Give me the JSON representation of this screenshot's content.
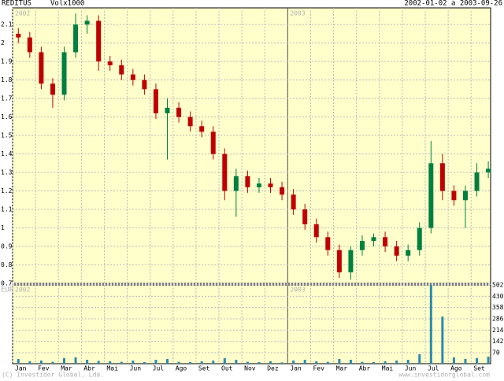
{
  "chart_data": [
    {
      "type": "candlestick",
      "title": "REDITUS",
      "volume_label": "Volx1000",
      "date_range": "2002-01-02 a 2003-09-26",
      "unit": "EUR",
      "year_labels": [
        {
          "value": 0,
          "label": "2002"
        },
        {
          "value": 12,
          "label": "2003"
        }
      ],
      "months": [
        "Jan",
        "Fev",
        "Mar",
        "Abr",
        "Mai",
        "Jun",
        "Jul",
        "Ago",
        "Set",
        "Out",
        "Nov",
        "Dez",
        "Jan",
        "Fev",
        "Mar",
        "Abr",
        "Mai",
        "Jun",
        "Jul",
        "Ago",
        "Set"
      ],
      "x": [
        0.25,
        0.75,
        1.25,
        1.75,
        2.25,
        2.75,
        3.25,
        3.75,
        4.25,
        4.75,
        5.25,
        5.75,
        6.25,
        6.75,
        7.25,
        7.75,
        8.25,
        8.75,
        9.25,
        9.75,
        10.25,
        10.75,
        11.25,
        11.75,
        12.25,
        12.75,
        13.25,
        13.75,
        14.25,
        14.75,
        15.25,
        15.75,
        16.25,
        16.75,
        17.25,
        17.75,
        18.25,
        18.75,
        19.25,
        19.75,
        20.25,
        20.75
      ],
      "open": [
        2.05,
        2.03,
        1.95,
        1.78,
        1.72,
        1.95,
        2.1,
        2.12,
        1.9,
        1.88,
        1.83,
        1.8,
        1.75,
        1.62,
        1.65,
        1.6,
        1.55,
        1.52,
        1.4,
        1.2,
        1.28,
        1.22,
        1.24,
        1.22,
        1.18,
        1.1,
        1.02,
        0.95,
        0.88,
        0.76,
        0.88,
        0.93,
        0.95,
        0.9,
        0.85,
        0.88,
        1.0,
        1.35,
        1.2,
        1.15,
        1.2,
        1.3
      ],
      "high": [
        2.08,
        2.06,
        1.98,
        1.81,
        1.98,
        2.16,
        2.15,
        2.15,
        1.93,
        1.91,
        1.86,
        1.83,
        1.78,
        1.7,
        1.68,
        1.63,
        1.58,
        1.55,
        1.43,
        1.32,
        1.31,
        1.27,
        1.27,
        1.25,
        1.21,
        1.13,
        1.05,
        0.98,
        0.91,
        0.9,
        0.96,
        0.97,
        0.98,
        0.93,
        0.91,
        1.03,
        1.47,
        1.4,
        1.23,
        1.23,
        1.35,
        1.36
      ],
      "low": [
        2.0,
        1.92,
        1.75,
        1.65,
        1.69,
        1.92,
        2.05,
        1.85,
        1.85,
        1.8,
        1.77,
        1.72,
        1.59,
        1.37,
        1.57,
        1.52,
        1.49,
        1.37,
        1.15,
        1.06,
        1.19,
        1.19,
        1.19,
        1.15,
        1.07,
        0.99,
        0.92,
        0.85,
        0.73,
        0.72,
        0.85,
        0.9,
        0.87,
        0.82,
        0.82,
        0.85,
        0.97,
        1.15,
        1.12,
        1.0,
        1.17,
        1.27
      ],
      "close": [
        2.03,
        1.95,
        1.78,
        1.72,
        1.95,
        2.1,
        2.12,
        1.9,
        1.88,
        1.83,
        1.8,
        1.75,
        1.62,
        1.65,
        1.6,
        1.55,
        1.52,
        1.4,
        1.2,
        1.28,
        1.22,
        1.24,
        1.22,
        1.18,
        1.1,
        1.02,
        0.95,
        0.88,
        0.76,
        0.88,
        0.93,
        0.95,
        0.9,
        0.85,
        0.88,
        1.0,
        1.35,
        1.2,
        1.15,
        1.2,
        1.3,
        1.32
      ],
      "up_color": "#008040",
      "down_color": "#c00000",
      "xlim": [
        0,
        20.85
      ],
      "ylim": [
        0.7,
        2.19
      ],
      "yticks": [
        0.7,
        0.8,
        0.9,
        1.0,
        1.1,
        1.2,
        1.3,
        1.4,
        1.5,
        1.6,
        1.7,
        1.8,
        1.9,
        2.0,
        2.1
      ],
      "grid": true
    },
    {
      "type": "volume",
      "x": [
        0.25,
        0.75,
        1.25,
        1.75,
        2.25,
        2.75,
        3.25,
        3.75,
        4.25,
        4.75,
        5.25,
        5.75,
        6.25,
        6.75,
        7.25,
        7.75,
        8.25,
        8.75,
        9.25,
        9.75,
        10.25,
        10.75,
        11.25,
        11.75,
        12.25,
        12.75,
        13.25,
        13.75,
        14.25,
        14.75,
        15.25,
        15.75,
        16.25,
        16.75,
        17.25,
        17.75,
        18.25,
        18.75,
        19.25,
        19.75,
        20.25,
        20.75
      ],
      "values": [
        30,
        15,
        20,
        12,
        35,
        40,
        25,
        18,
        15,
        12,
        20,
        10,
        25,
        30,
        12,
        10,
        15,
        20,
        35,
        25,
        12,
        10,
        15,
        8,
        20,
        25,
        15,
        12,
        30,
        25,
        12,
        10,
        15,
        20,
        25,
        60,
        502,
        300,
        40,
        30,
        35,
        45
      ],
      "color": "#2a8ab0",
      "ylim": [
        0,
        502
      ],
      "yticks": [
        70,
        142,
        214,
        286,
        358,
        430,
        502
      ],
      "copyright": "(C) Investidor Global, Lda.",
      "website": "www.investidorglobal.com"
    }
  ]
}
